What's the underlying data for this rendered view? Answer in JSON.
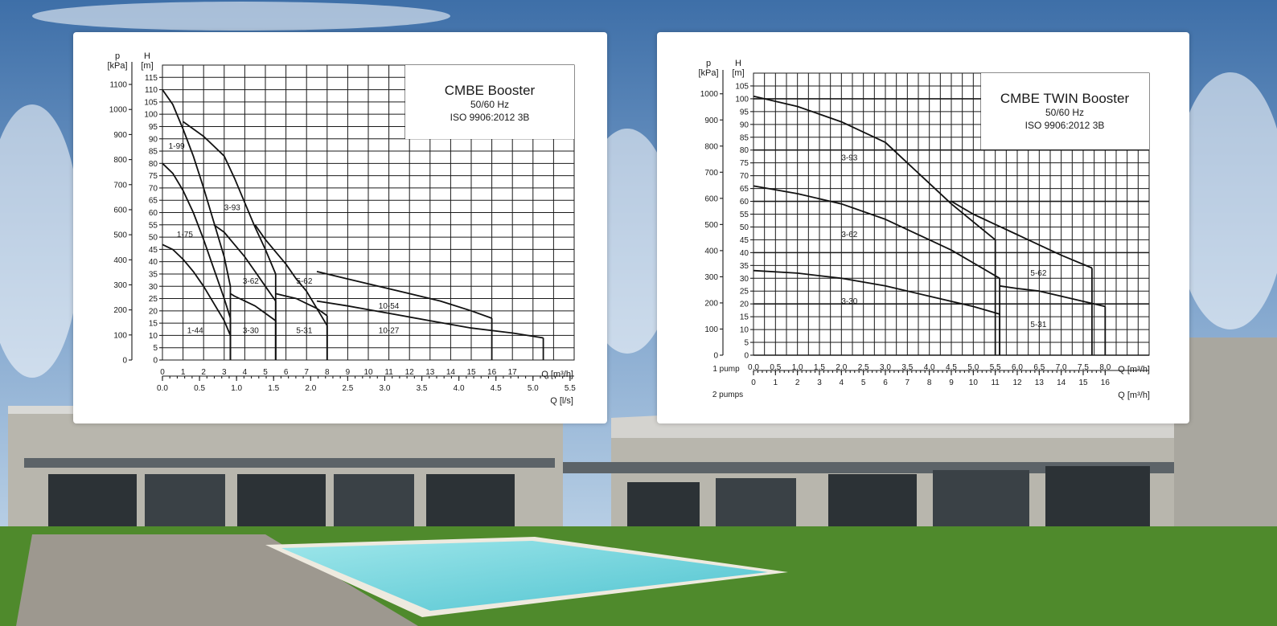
{
  "colors": {
    "sky_top": "#3e6fa8",
    "sky_bottom": "#cddfee",
    "lawn": "#4f8a2c",
    "pool": "#6fd4df",
    "deck": "#9d988f",
    "wall": "#b8b6ad"
  },
  "chart_data": [
    {
      "type": "line",
      "title": "CMBE Booster",
      "subtitle_1": "50/60 Hz",
      "subtitle_2": "ISO 9906:2012 3B",
      "y_left_label_top": "p",
      "y_left_label_bottom": "[kPa]",
      "y_right_label_top": "H",
      "y_right_label_bottom": "[m]",
      "x_label": "Q [m³/h]",
      "x2_label": "Q [l/s]",
      "xlim": [
        0,
        20
      ],
      "ylim": [
        0,
        120
      ],
      "pressure_ticks": [
        "0",
        "100",
        "200",
        "300",
        "400",
        "500",
        "600",
        "700",
        "800",
        "900",
        "1000",
        "1100"
      ],
      "head_ticks": [
        "0",
        "5",
        "10",
        "15",
        "20",
        "25",
        "30",
        "35",
        "40",
        "45",
        "50",
        "55",
        "60",
        "65",
        "70",
        "75",
        "80",
        "85",
        "90",
        "95",
        "100",
        "105",
        "110",
        "115"
      ],
      "x_ticks": [
        "0",
        "1",
        "2",
        "3",
        "4",
        "5",
        "6",
        "7",
        "8",
        "9",
        "10",
        "11",
        "12",
        "13",
        "14",
        "15",
        "16",
        "17"
      ],
      "x2_ticks": [
        "0.0",
        "0.5",
        "1.0",
        "1.5",
        "2.0",
        "2.5",
        "3.0",
        "3.5",
        "4.0",
        "4.5",
        "5.0",
        "5.5"
      ],
      "x2_factor": 3.6,
      "series": [
        {
          "name": "1-99",
          "x": [
            0,
            0.5,
            1.0,
            1.5,
            2.0,
            2.5,
            3.0,
            3.3
          ],
          "y": [
            110,
            104,
            94,
            83,
            70,
            56,
            42,
            30
          ],
          "label_at": [
            0.3,
            86
          ]
        },
        {
          "name": "1-75",
          "x": [
            0,
            0.5,
            1.0,
            1.5,
            2.0,
            2.5,
            3.0,
            3.3
          ],
          "y": [
            80,
            76,
            69,
            60,
            49,
            37,
            25,
            17
          ],
          "label_at": [
            0.7,
            50
          ]
        },
        {
          "name": "1-44",
          "x": [
            0,
            0.5,
            1.0,
            1.5,
            2.0,
            2.5,
            3.0,
            3.3
          ],
          "y": [
            47,
            45,
            41,
            36,
            30,
            23,
            16,
            10
          ],
          "label_at": [
            1.2,
            11
          ]
        },
        {
          "name": "3-93",
          "x": [
            1.0,
            1.5,
            2.0,
            2.5,
            3.0,
            3.5,
            4.0,
            4.5,
            5.0,
            5.5
          ],
          "y": [
            97,
            94,
            91,
            87,
            83,
            74,
            64,
            54,
            45,
            35
          ],
          "label_at": [
            3.0,
            61
          ]
        },
        {
          "name": "3-62",
          "x": [
            2.5,
            3.0,
            3.5,
            4.0,
            4.5,
            5.0,
            5.5
          ],
          "y": [
            55,
            52,
            47,
            42,
            36,
            30,
            24
          ],
          "label_at": [
            3.9,
            31
          ]
        },
        {
          "name": "3-30",
          "x": [
            3.3,
            3.5,
            4.0,
            4.5,
            5.0,
            5.5
          ],
          "y": [
            27,
            26,
            24,
            22,
            19,
            16
          ],
          "label_at": [
            3.9,
            11
          ]
        },
        {
          "name": "5-62",
          "x": [
            4.5,
            5.0,
            5.5,
            6.0,
            6.5,
            7.0,
            7.5,
            8.0
          ],
          "y": [
            55,
            49,
            44,
            39,
            33,
            28,
            21,
            14
          ],
          "label_at": [
            6.5,
            31
          ]
        },
        {
          "name": "5-31",
          "x": [
            5.5,
            6.0,
            6.5,
            7.0,
            7.5,
            8.0
          ],
          "y": [
            27,
            26,
            25,
            23,
            21,
            18
          ],
          "label_at": [
            6.5,
            11
          ]
        },
        {
          "name": "10-54",
          "x": [
            7.5,
            9.0,
            10.5,
            12.0,
            13.5,
            15.0,
            16.0
          ],
          "y": [
            36,
            33,
            30,
            27,
            24,
            20,
            17
          ],
          "label_at": [
            10.5,
            21
          ]
        },
        {
          "name": "10-27",
          "x": [
            7.5,
            9.0,
            11.0,
            13.0,
            15.0,
            17.0,
            18.5
          ],
          "y": [
            24,
            22,
            19,
            16,
            13,
            11,
            9
          ],
          "label_at": [
            10.5,
            11
          ]
        }
      ]
    },
    {
      "type": "line",
      "title": "CMBE TWIN Booster",
      "subtitle_1": "50/60 Hz",
      "subtitle_2": "ISO 9906:2012 3B",
      "y_left_label_top": "p",
      "y_left_label_bottom": "[kPa]",
      "y_right_label_top": "H",
      "y_right_label_bottom": "[m]",
      "x_row_label": "1 pump",
      "x2_row_label": "2 pumps",
      "x_label": "Q [m³/h]",
      "x2_label": "Q [m³/h]",
      "xlim": [
        0,
        9
      ],
      "ylim": [
        0,
        110
      ],
      "pressure_ticks": [
        "0",
        "100",
        "200",
        "300",
        "400",
        "500",
        "600",
        "700",
        "800",
        "900",
        "1000"
      ],
      "head_ticks": [
        "0",
        "5",
        "10",
        "15",
        "20",
        "25",
        "30",
        "35",
        "40",
        "45",
        "50",
        "55",
        "60",
        "65",
        "70",
        "75",
        "80",
        "85",
        "90",
        "95",
        "100",
        "105"
      ],
      "x_ticks": [
        "0.0",
        "0.5",
        "1.0",
        "1.5",
        "2.0",
        "2.5",
        "3.0",
        "3.5",
        "4.0",
        "4.5",
        "5.0",
        "5.5",
        "6.0",
        "6.5",
        "7.0",
        "7.5",
        "8.0"
      ],
      "x2_ticks": [
        "0",
        "1",
        "2",
        "3",
        "4",
        "5",
        "6",
        "7",
        "8",
        "9",
        "10",
        "11",
        "12",
        "13",
        "14",
        "15",
        "16"
      ],
      "x2_factor": 0.5,
      "series": [
        {
          "name": "3-93",
          "x": [
            0,
            1.0,
            2.0,
            3.0,
            3.5,
            4.0,
            4.5,
            5.0,
            5.5
          ],
          "y": [
            101,
            97,
            91,
            83,
            75,
            67,
            59,
            52,
            45
          ],
          "label_at": [
            2.0,
            76
          ]
        },
        {
          "name": "3-62",
          "x": [
            0,
            1.0,
            2.0,
            3.0,
            4.0,
            4.5,
            5.0,
            5.6
          ],
          "y": [
            66,
            63,
            59,
            53,
            45,
            41,
            36,
            30
          ],
          "label_at": [
            2.0,
            46
          ]
        },
        {
          "name": "3-30",
          "x": [
            0,
            1.0,
            2.0,
            3.0,
            4.0,
            5.0,
            5.6
          ],
          "y": [
            33,
            32,
            30,
            27,
            23,
            19,
            16
          ],
          "label_at": [
            2.0,
            20
          ]
        },
        {
          "name": "5-62",
          "x": [
            4.5,
            5.0,
            5.5,
            6.0,
            6.5,
            7.0,
            7.7
          ],
          "y": [
            60,
            55,
            51,
            47,
            43,
            39,
            34
          ],
          "label_at": [
            6.3,
            31
          ]
        },
        {
          "name": "5-31",
          "x": [
            5.6,
            6.0,
            6.5,
            7.0,
            7.5,
            8.0
          ],
          "y": [
            27,
            26,
            25,
            23,
            21,
            19
          ],
          "label_at": [
            6.3,
            11
          ]
        }
      ]
    }
  ]
}
